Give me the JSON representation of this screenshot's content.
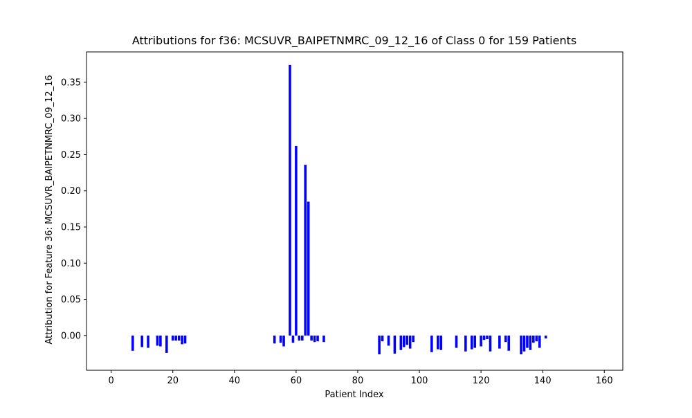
{
  "chart_data": {
    "type": "bar",
    "title": "Attributions for f36: MCSUVR_BAIPETNMRC_09_12_16 of Class 0 for 159 Patients",
    "xlabel": "Patient Index",
    "ylabel": "Attribution for Feature 36: MCSUVR_BAIPETNMRC_09_12_16",
    "xlim": [
      -8,
      166
    ],
    "ylim": [
      -0.048,
      0.392
    ],
    "xticks": [
      0,
      20,
      40,
      60,
      80,
      100,
      120,
      140,
      160
    ],
    "yticks": [
      0.0,
      0.05,
      0.1,
      0.15,
      0.2,
      0.25,
      0.3,
      0.35
    ],
    "ytick_labels": [
      "0.00",
      "0.05",
      "0.10",
      "0.15",
      "0.20",
      "0.25",
      "0.30",
      "0.35"
    ],
    "bar_color": "#0000ff",
    "grid": false,
    "legend": "none",
    "x": [
      7,
      10,
      12,
      15,
      16,
      18,
      20,
      21,
      22,
      23,
      24,
      53,
      55,
      56,
      58,
      59,
      60,
      61,
      62,
      63,
      64,
      65,
      66,
      67,
      69,
      87,
      88,
      90,
      92,
      94,
      95,
      96,
      97,
      98,
      104,
      106,
      107,
      112,
      115,
      117,
      118,
      120,
      121,
      122,
      123,
      126,
      128,
      129,
      133,
      134,
      135,
      136,
      137,
      138,
      139,
      141
    ],
    "values": [
      -0.021,
      -0.016,
      -0.017,
      -0.014,
      -0.015,
      -0.024,
      -0.007,
      -0.007,
      -0.007,
      -0.012,
      -0.011,
      -0.011,
      -0.01,
      -0.015,
      0.374,
      -0.01,
      0.262,
      -0.007,
      -0.007,
      0.236,
      0.185,
      -0.007,
      -0.009,
      -0.008,
      -0.009,
      -0.026,
      -0.008,
      -0.014,
      -0.025,
      -0.02,
      -0.016,
      -0.013,
      -0.018,
      -0.009,
      -0.023,
      -0.019,
      -0.02,
      -0.017,
      -0.022,
      -0.019,
      -0.017,
      -0.015,
      -0.006,
      -0.005,
      -0.022,
      -0.018,
      -0.009,
      -0.021,
      -0.026,
      -0.022,
      -0.017,
      -0.02,
      -0.01,
      -0.008,
      -0.017,
      -0.004
    ]
  }
}
